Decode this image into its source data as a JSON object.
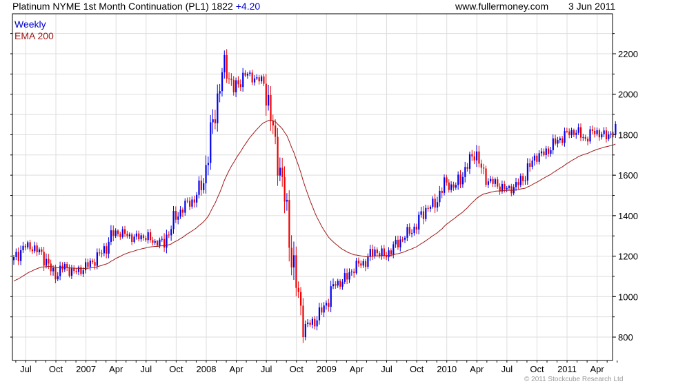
{
  "header": {
    "title": "Platinum NYME 1st Month Continuation (PL1) 1822",
    "change": "+4.20",
    "site": "www.fullermoney.com",
    "date": "3 Jun 2011"
  },
  "legend": {
    "series": "Weekly",
    "ema": "EMA 200"
  },
  "copyright": "© 2011 Stockcube Research Ltd",
  "colors": {
    "up": "#0000ee",
    "down": "#ee0000",
    "ema": "#a01818",
    "change": "#0000cc"
  },
  "chart_data": {
    "type": "candlestick",
    "title": "Platinum NYME 1st Month Continuation (PL1)",
    "ylim": [
      720,
      2340
    ],
    "y_ticks": [
      800,
      1000,
      1200,
      1400,
      1600,
      1800,
      2000,
      2200
    ],
    "x_tick_labels": [
      "Jul",
      "Oct",
      "2007",
      "Apr",
      "Jul",
      "Oct",
      "2008",
      "Apr",
      "Jul",
      "Oct",
      "2009",
      "Apr",
      "Jul",
      "Oct",
      "2010",
      "Apr",
      "Jul",
      "Oct",
      "2011",
      "Apr"
    ],
    "months": [
      "Jun 2006",
      "Jul 2006",
      "Aug 2006",
      "Sep 2006",
      "Oct 2006",
      "Nov 2006",
      "Dec 2006",
      "Jan 2007",
      "Feb 2007",
      "Mar 2007",
      "Apr 2007",
      "May 2007",
      "Jun 2007",
      "Jul 2007",
      "Aug 2007",
      "Sep 2007",
      "Oct 2007",
      "Nov 2007",
      "Dec 2007",
      "Jan 2008",
      "Feb 2008",
      "Mar 2008",
      "Apr 2008",
      "May 2008",
      "Jun 2008",
      "Jul 2008",
      "Aug 2008",
      "Sep 2008",
      "Oct 2008",
      "Nov 2008",
      "Dec 2008",
      "Jan 2009",
      "Feb 2009",
      "Mar 2009",
      "Apr 2009",
      "May 2009",
      "Jun 2009",
      "Jul 2009",
      "Aug 2009",
      "Sep 2009",
      "Oct 2009",
      "Nov 2009",
      "Dec 2009",
      "Jan 2010",
      "Feb 2010",
      "Mar 2010",
      "Apr 2010",
      "May 2010",
      "Jun 2010",
      "Jul 2010",
      "Aug 2010",
      "Sep 2010",
      "Oct 2010",
      "Nov 2010",
      "Dec 2010",
      "Jan 2011",
      "Feb 2011",
      "Mar 2011",
      "Apr 2011",
      "May 2011",
      "Jun 2011"
    ],
    "monthly_close": [
      1180,
      1250,
      1240,
      1200,
      1100,
      1150,
      1120,
      1140,
      1180,
      1230,
      1320,
      1310,
      1290,
      1300,
      1270,
      1270,
      1380,
      1450,
      1480,
      1580,
      1900,
      2150,
      2020,
      2100,
      2080,
      2060,
      1780,
      1500,
      1100,
      850,
      880,
      950,
      1060,
      1080,
      1150,
      1170,
      1230,
      1200,
      1250,
      1300,
      1340,
      1430,
      1460,
      1560,
      1540,
      1620,
      1720,
      1580,
      1560,
      1530,
      1540,
      1600,
      1690,
      1710,
      1760,
      1800,
      1820,
      1780,
      1820,
      1790,
      1822
    ],
    "ema_start": 1070,
    "ema_period_weeks": 40
  }
}
